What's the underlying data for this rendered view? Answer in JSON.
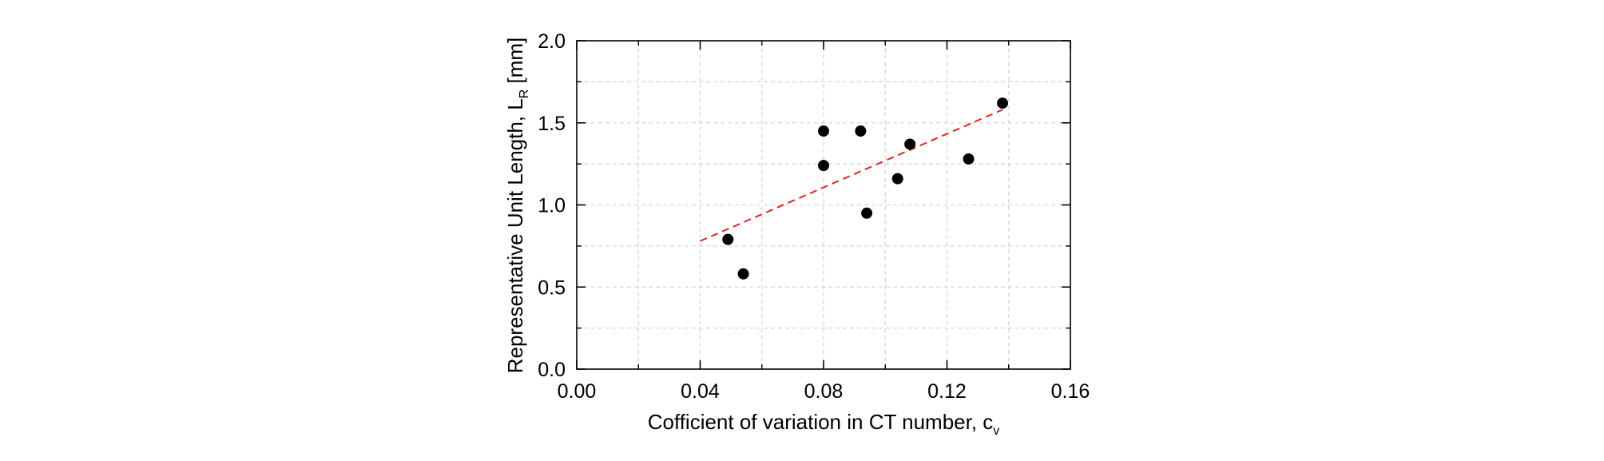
{
  "chart_data": {
    "type": "scatter",
    "title": "",
    "xlabel": "Cofficient of variation in CT number, c",
    "xlabel_subscript": "v",
    "ylabel": "Representative Unit Length, L",
    "ylabel_subscript": "R",
    "ylabel_units": " [mm]",
    "xlim": [
      0.0,
      0.16
    ],
    "ylim": [
      0.0,
      2.0
    ],
    "x_ticks": [
      0.0,
      0.04,
      0.08,
      0.12,
      0.16
    ],
    "x_tick_labels": [
      "0.00",
      "0.04",
      "0.08",
      "0.12",
      "0.16"
    ],
    "y_ticks": [
      0.0,
      0.5,
      1.0,
      1.5,
      2.0
    ],
    "y_tick_labels": [
      "0.0",
      "0.5",
      "1.0",
      "1.5",
      "2.0"
    ],
    "x_minor_ticks": [
      0.02,
      0.06,
      0.1,
      0.14
    ],
    "y_minor_ticks": [
      0.25,
      0.75,
      1.25,
      1.75
    ],
    "grid": true,
    "series": [
      {
        "name": "data",
        "kind": "points",
        "color": "#000000",
        "x": [
          0.049,
          0.054,
          0.08,
          0.08,
          0.092,
          0.094,
          0.104,
          0.108,
          0.127,
          0.138
        ],
        "y": [
          0.79,
          0.58,
          1.45,
          1.24,
          1.45,
          0.95,
          1.16,
          1.37,
          1.28,
          1.62
        ]
      },
      {
        "name": "trend",
        "kind": "dashed-line",
        "color": "#e8231e",
        "x": [
          0.04,
          0.138
        ],
        "y": [
          0.78,
          1.58
        ]
      }
    ]
  }
}
